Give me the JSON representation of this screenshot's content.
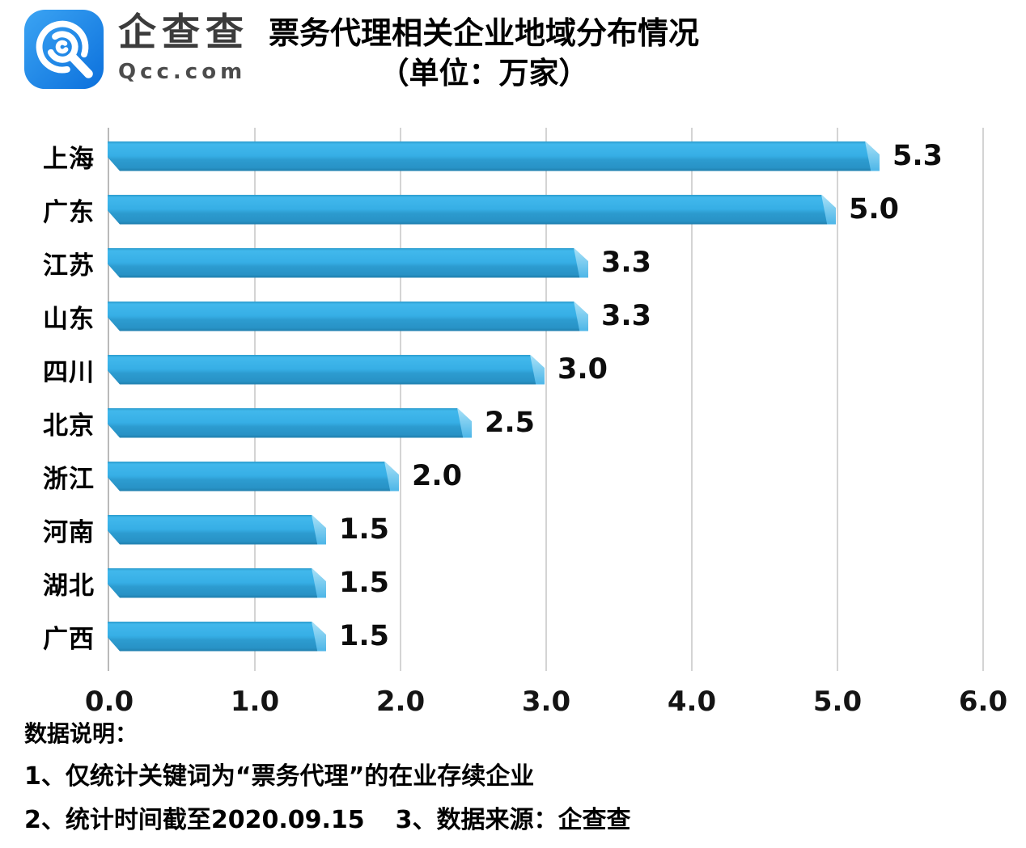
{
  "header": {
    "logo": {
      "name": "企查查",
      "domain": "Qcc.com",
      "icon": "qcc-spiral-q-icon",
      "brand_color_top": "#3ba4f3",
      "brand_color_bottom": "#0c70dc"
    },
    "title_line1": "票务代理相关企业地域分布情况",
    "title_line2": "（单位：万家）"
  },
  "chart_data": {
    "type": "bar",
    "orientation": "horizontal",
    "title": "票务代理相关企业地域分布情况（单位：万家）",
    "unit": "万家",
    "categories": [
      "上海",
      "广东",
      "江苏",
      "山东",
      "四川",
      "北京",
      "浙江",
      "河南",
      "湖北",
      "广西"
    ],
    "values": [
      5.3,
      5.0,
      3.3,
      3.3,
      3.0,
      2.5,
      2.0,
      1.5,
      1.5,
      1.5
    ],
    "value_labels": [
      "5.3",
      "5.0",
      "3.3",
      "3.3",
      "3.0",
      "2.5",
      "2.0",
      "1.5",
      "1.5",
      "1.5"
    ],
    "x_ticks": [
      "0.0",
      "1.0",
      "2.0",
      "3.0",
      "4.0",
      "5.0",
      "6.0"
    ],
    "xlim": [
      0,
      6
    ],
    "grid": true,
    "legend": "none",
    "bar_color": "#36aee5",
    "bar_shade_color": "#2892c6",
    "bar_cap_color": "#8fd5f3",
    "gridline_color": "#d4d4d4",
    "axis_color": "#b9b9b9",
    "label_color": "#000000"
  },
  "footer": {
    "heading": "数据说明：",
    "notes": [
      "1、仅统计关键词为“票务代理”的在业存续企业",
      "2、统计时间截至2020.09.15",
      "3、数据来源：企查查"
    ]
  }
}
